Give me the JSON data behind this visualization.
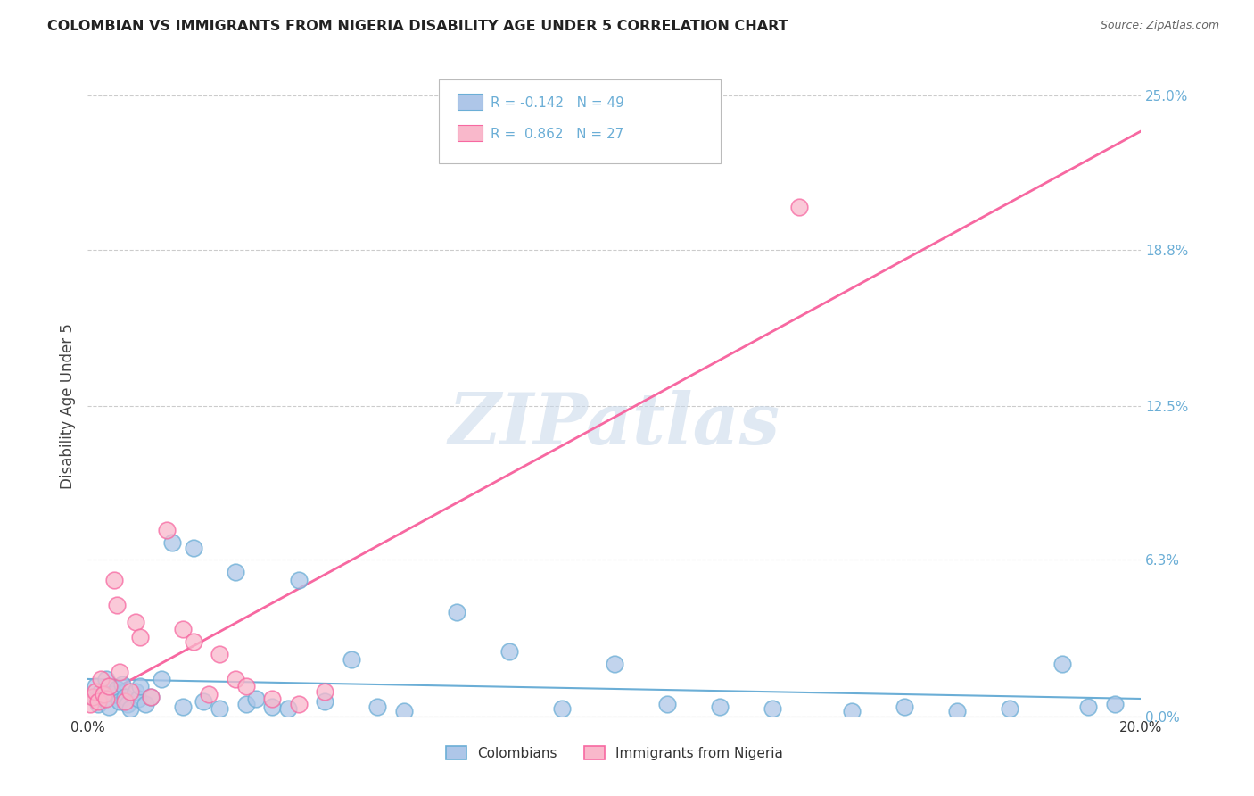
{
  "title": "COLOMBIAN VS IMMIGRANTS FROM NIGERIA DISABILITY AGE UNDER 5 CORRELATION CHART",
  "source": "Source: ZipAtlas.com",
  "ylabel": "Disability Age Under 5",
  "ytick_values": [
    0.0,
    6.3,
    12.5,
    18.8,
    25.0
  ],
  "xlim": [
    0.0,
    20.0
  ],
  "ylim": [
    0.0,
    25.0
  ],
  "colombians_x": [
    0.1,
    0.15,
    0.2,
    0.25,
    0.3,
    0.35,
    0.4,
    0.5,
    0.55,
    0.6,
    0.65,
    0.7,
    0.75,
    0.8,
    0.9,
    0.95,
    1.0,
    1.1,
    1.2,
    1.4,
    1.6,
    1.8,
    2.0,
    2.2,
    2.5,
    2.8,
    3.0,
    3.2,
    3.5,
    3.8,
    4.0,
    4.5,
    5.0,
    5.5,
    6.0,
    7.0,
    8.0,
    9.0,
    10.0,
    11.0,
    12.0,
    13.0,
    14.5,
    15.5,
    16.5,
    17.5,
    18.5,
    19.0,
    19.5
  ],
  "colombians_y": [
    0.8,
    1.2,
    0.5,
    1.0,
    0.7,
    1.5,
    0.4,
    0.9,
    1.1,
    0.6,
    1.3,
    0.8,
    0.5,
    0.3,
    1.0,
    0.7,
    1.2,
    0.5,
    0.8,
    1.5,
    7.0,
    0.4,
    6.8,
    0.6,
    0.3,
    5.8,
    0.5,
    0.7,
    0.4,
    0.3,
    5.5,
    0.6,
    2.3,
    0.4,
    0.2,
    4.2,
    2.6,
    0.3,
    2.1,
    0.5,
    0.4,
    0.3,
    0.2,
    0.4,
    0.2,
    0.3,
    2.1,
    0.4,
    0.5
  ],
  "nigeria_x": [
    0.05,
    0.1,
    0.15,
    0.2,
    0.25,
    0.3,
    0.35,
    0.4,
    0.5,
    0.55,
    0.6,
    0.7,
    0.8,
    0.9,
    1.0,
    1.2,
    1.5,
    1.8,
    2.0,
    2.3,
    2.5,
    2.8,
    3.0,
    3.5,
    4.0,
    4.5,
    13.5
  ],
  "nigeria_y": [
    0.5,
    0.8,
    1.0,
    0.6,
    1.5,
    0.9,
    0.7,
    1.2,
    5.5,
    4.5,
    1.8,
    0.6,
    1.0,
    3.8,
    3.2,
    0.8,
    7.5,
    3.5,
    3.0,
    0.9,
    2.5,
    1.5,
    1.2,
    0.7,
    0.5,
    1.0,
    20.5
  ],
  "colombian_line_color": "#6baed6",
  "nigeria_line_color": "#f768a1",
  "scatter_colombian_color": "#aec6e8",
  "scatter_nigeria_color": "#f9b8cb",
  "watermark": "ZIPatlas",
  "background_color": "#ffffff",
  "grid_color": "#cccccc",
  "legend_r_colombian": "R = -0.142",
  "legend_n_colombian": "N = 49",
  "legend_r_nigeria": "R =  0.862",
  "legend_n_nigeria": "N = 27",
  "legend_label_colombian": "Colombians",
  "legend_label_nigeria": "Immigrants from Nigeria"
}
